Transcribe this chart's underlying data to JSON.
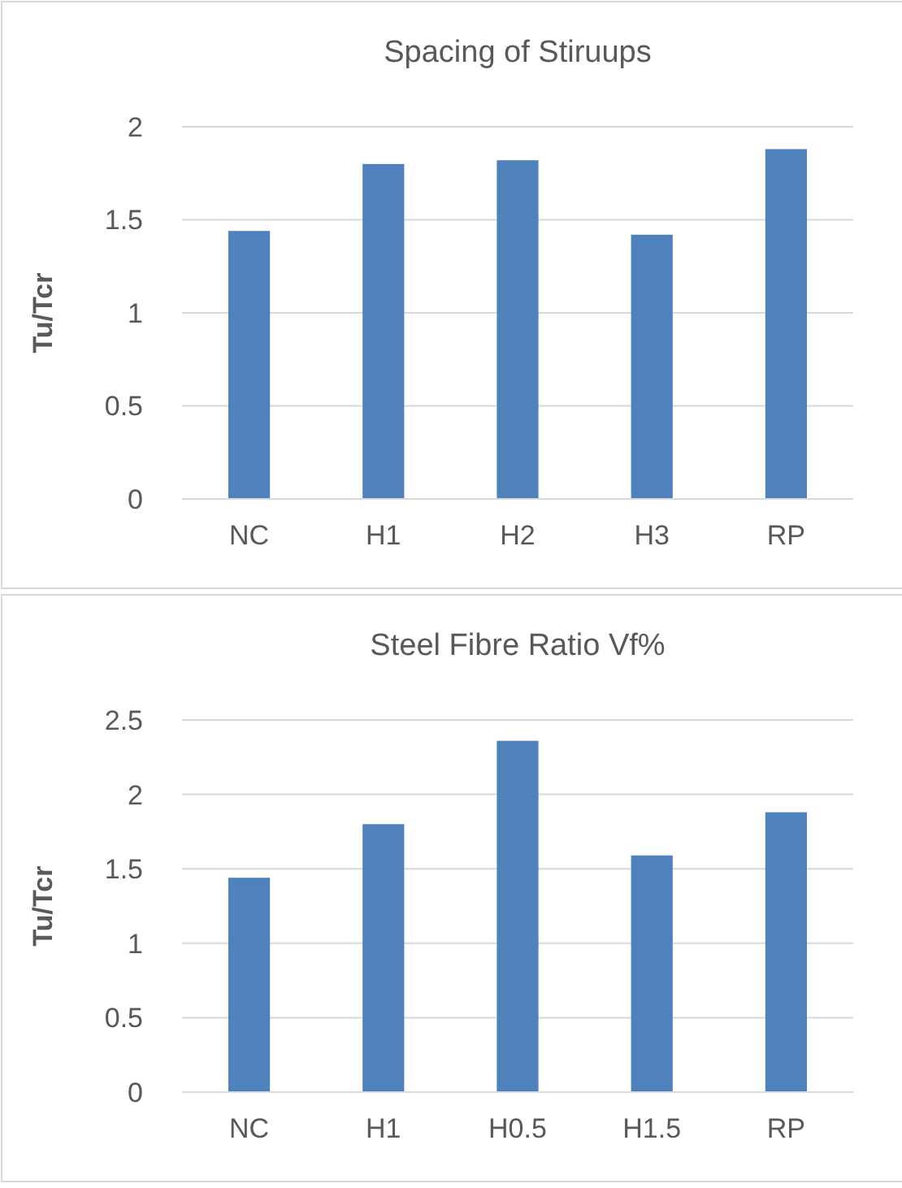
{
  "chart_data": [
    {
      "type": "bar",
      "title": "Spacing of Stiruups",
      "ylabel": "Tu/Tcr",
      "categories": [
        "NC",
        "H1",
        "H2",
        "H3",
        "RP"
      ],
      "values": [
        1.44,
        1.8,
        1.82,
        1.42,
        1.88
      ],
      "color": "#4f81bd",
      "ylim": [
        0,
        2
      ],
      "yticks": [
        0,
        0.5,
        1,
        1.5,
        2
      ],
      "grid": "y"
    },
    {
      "type": "bar",
      "title": "Steel Fibre Ratio Vf%",
      "ylabel": "Tu/Tcr",
      "categories": [
        "NC",
        "H1",
        "H0.5",
        "H1.5",
        "RP"
      ],
      "values": [
        1.44,
        1.8,
        2.36,
        1.59,
        1.88
      ],
      "color": "#4f81bd",
      "ylim": [
        0,
        2.5
      ],
      "yticks": [
        0,
        0.5,
        1,
        1.5,
        2,
        2.5
      ],
      "grid": "y"
    }
  ]
}
